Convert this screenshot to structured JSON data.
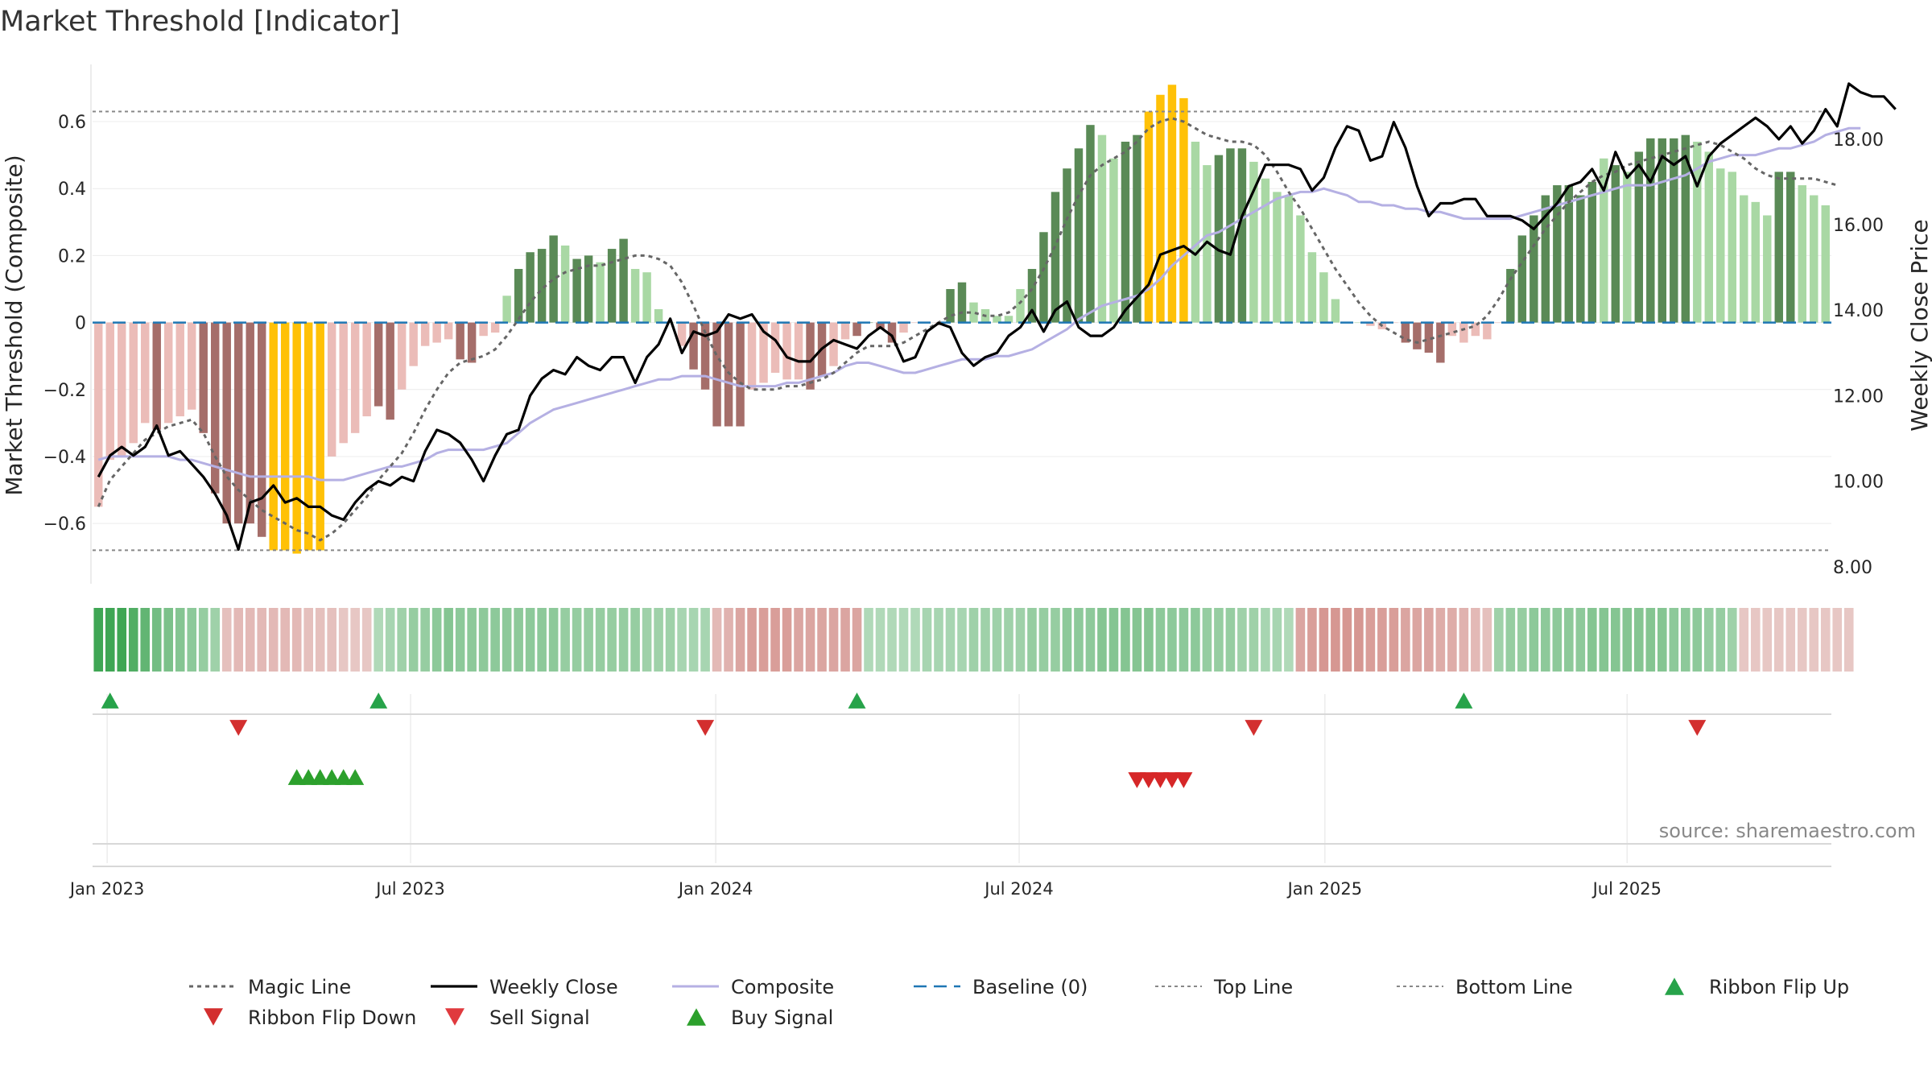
{
  "chart_data": {
    "type": "bar",
    "title": "Market Threshold [Indicator]",
    "ylabel": "Market Threshold (Composite)",
    "y2label": "Weekly Close Price",
    "source": "source: sharemaestro.com",
    "ylim": [
      -0.78,
      0.79
    ],
    "y2lim": [
      7.6,
      19.9
    ],
    "yticks": [
      "0.6",
      "0.4",
      "0.2",
      "0",
      "−0.2",
      "−0.4",
      "−0.6"
    ],
    "yticks_values": [
      0.6,
      0.4,
      0.2,
      0,
      -0.2,
      -0.4,
      -0.6
    ],
    "y2ticks": [
      "18.00",
      "16.00",
      "14.00",
      "12.00",
      "10.00",
      "8.00"
    ],
    "y2ticks_values": [
      18,
      16,
      14,
      12,
      10,
      8
    ],
    "xticks": [
      "Jan 2023",
      "Jul 2023",
      "Jan 2024",
      "Jul 2024",
      "Jan 2025",
      "Jul 2025"
    ],
    "xticks_week_index": [
      0.75,
      26.75,
      52.9,
      78.9,
      105.1,
      131
    ],
    "top_line": 0.63,
    "bottom_line": -0.68,
    "grid": true,
    "legend_position": "bottom",
    "colors": {
      "strong_pos": "#5a8a56",
      "weak_pos": "#a9d8a4",
      "strong_neg": "#a56e6a",
      "weak_neg": "#ebbcb8",
      "extreme": "#ffc107",
      "close": "#000000",
      "composite": "#b5b0e3",
      "magic": "#666666",
      "baseline": "#1f77b4",
      "buy": "#2ca02c",
      "sell": "#d62728",
      "flip_up": "#27a34a",
      "flip_down": "#d32f2f"
    },
    "bar_values": [
      -0.55,
      -0.41,
      -0.4,
      -0.36,
      -0.3,
      -0.32,
      -0.3,
      -0.28,
      -0.26,
      -0.33,
      -0.51,
      -0.6,
      -0.6,
      -0.6,
      -0.64,
      -0.68,
      -0.68,
      -0.69,
      -0.68,
      -0.68,
      -0.4,
      -0.36,
      -0.33,
      -0.28,
      -0.25,
      -0.29,
      -0.2,
      -0.13,
      -0.07,
      -0.06,
      -0.05,
      -0.11,
      -0.12,
      -0.04,
      -0.03,
      0.08,
      0.16,
      0.21,
      0.22,
      0.26,
      0.23,
      0.19,
      0.2,
      0.18,
      0.22,
      0.25,
      0.16,
      0.15,
      0.04,
      0.0,
      -0.07,
      -0.14,
      -0.2,
      -0.31,
      -0.31,
      -0.31,
      -0.2,
      -0.18,
      -0.15,
      -0.17,
      -0.17,
      -0.2,
      -0.16,
      -0.13,
      -0.05,
      -0.04,
      0.0,
      -0.02,
      -0.06,
      -0.03,
      0.0,
      0.0,
      0.0,
      0.1,
      0.12,
      0.06,
      0.04,
      0.02,
      0.02,
      0.1,
      0.16,
      0.27,
      0.39,
      0.46,
      0.52,
      0.59,
      0.56,
      0.49,
      0.54,
      0.56,
      0.63,
      0.68,
      0.71,
      0.67,
      0.54,
      0.47,
      0.5,
      0.52,
      0.52,
      0.48,
      0.43,
      0.39,
      0.38,
      0.32,
      0.21,
      0.15,
      0.07,
      0.0,
      0.0,
      -0.01,
      -0.02,
      0.0,
      -0.06,
      -0.08,
      -0.09,
      -0.12,
      -0.04,
      -0.06,
      -0.04,
      -0.05,
      0.0,
      0.16,
      0.26,
      0.32,
      0.38,
      0.41,
      0.41,
      0.38,
      0.42,
      0.49,
      0.47,
      0.45,
      0.51,
      0.55,
      0.55,
      0.55,
      0.56,
      0.54,
      0.51,
      0.46,
      0.45,
      0.38,
      0.36,
      0.32,
      0.45,
      0.45,
      0.41,
      0.38,
      0.35
    ],
    "bar_classes": [
      "wn",
      "wn",
      "wn",
      "wn",
      "wn",
      "sn",
      "wn",
      "wn",
      "wn",
      "sn",
      "sn",
      "sn",
      "sn",
      "sn",
      "sn",
      "ex",
      "ex",
      "ex",
      "ex",
      "ex",
      "wn",
      "wn",
      "wn",
      "wn",
      "sn",
      "sn",
      "wn",
      "wn",
      "wn",
      "wn",
      "wn",
      "sn",
      "sn",
      "wn",
      "wn",
      "wp",
      "sp",
      "sp",
      "sp",
      "sp",
      "wp",
      "sp",
      "sp",
      "wp",
      "sp",
      "sp",
      "wp",
      "wp",
      "wp",
      "wp",
      "wn",
      "sn",
      "sn",
      "sn",
      "sn",
      "sn",
      "wn",
      "wn",
      "wn",
      "wn",
      "wn",
      "sn",
      "sn",
      "wn",
      "wn",
      "sn",
      "sp",
      "sn",
      "sn",
      "wn",
      "wn",
      "wn",
      "wn",
      "sp",
      "sp",
      "wp",
      "wp",
      "wp",
      "wp",
      "wp",
      "sp",
      "sp",
      "sp",
      "sp",
      "sp",
      "sp",
      "wp",
      "wp",
      "sp",
      "sp",
      "ex",
      "ex",
      "ex",
      "ex",
      "wp",
      "wp",
      "sp",
      "sp",
      "sp",
      "wp",
      "wp",
      "wp",
      "wp",
      "wp",
      "wp",
      "wp",
      "wp",
      "wp",
      "wp",
      "wn",
      "wn",
      "wn",
      "sn",
      "sn",
      "sn",
      "sn",
      "wn",
      "wn",
      "wn",
      "wn",
      "wn",
      "sp",
      "sp",
      "sp",
      "sp",
      "sp",
      "sp",
      "sp",
      "sp",
      "wp",
      "sp",
      "wp",
      "sp",
      "sp",
      "sp",
      "sp",
      "sp",
      "wp",
      "wp",
      "wp",
      "wp",
      "wp",
      "wp",
      "wp",
      "sp",
      "sp",
      "wp",
      "wp",
      "wp"
    ],
    "close_values": [
      10.1,
      10.6,
      10.8,
      10.6,
      10.8,
      11.3,
      10.6,
      10.7,
      10.4,
      10.1,
      9.7,
      9.2,
      8.4,
      9.5,
      9.6,
      9.9,
      9.5,
      9.6,
      9.4,
      9.4,
      9.2,
      9.1,
      9.5,
      9.8,
      10.0,
      9.9,
      10.1,
      10.0,
      10.7,
      11.2,
      11.1,
      10.9,
      10.5,
      10.0,
      10.6,
      11.1,
      11.2,
      12.0,
      12.4,
      12.6,
      12.5,
      12.9,
      12.7,
      12.6,
      12.9,
      12.9,
      12.3,
      12.9,
      13.2,
      13.8,
      13.0,
      13.5,
      13.4,
      13.5,
      13.9,
      13.8,
      13.9,
      13.5,
      13.3,
      12.9,
      12.8,
      12.8,
      13.1,
      13.3,
      13.2,
      13.1,
      13.4,
      13.6,
      13.4,
      12.8,
      12.9,
      13.5,
      13.7,
      13.6,
      13.0,
      12.7,
      12.9,
      13.0,
      13.4,
      13.6,
      14.0,
      13.5,
      14.0,
      14.2,
      13.6,
      13.4,
      13.4,
      13.6,
      14.0,
      14.3,
      14.6,
      15.3,
      15.4,
      15.5,
      15.3,
      15.6,
      15.4,
      15.3,
      16.2,
      16.8,
      17.4,
      17.4,
      17.4,
      17.3,
      16.8,
      17.1,
      17.8,
      18.3,
      18.2,
      17.5,
      17.6,
      18.4,
      17.8,
      16.9,
      16.2,
      16.5,
      16.5,
      16.6,
      16.6,
      16.2,
      16.2,
      16.2,
      16.1,
      15.9,
      16.2,
      16.5,
      16.9,
      17.0,
      17.3,
      16.8,
      17.7,
      17.1,
      17.4,
      17.0,
      17.6,
      17.4,
      17.6,
      16.9,
      17.6,
      17.9,
      18.1,
      18.3,
      18.5,
      18.3,
      18.0,
      18.3,
      17.9,
      18.2,
      18.7,
      18.3,
      19.3,
      19.1,
      19.0,
      19.0,
      18.7
    ],
    "composite_values": [
      -0.41,
      -0.4,
      -0.4,
      -0.4,
      -0.4,
      -0.4,
      -0.4,
      -0.41,
      -0.41,
      -0.42,
      -0.43,
      -0.44,
      -0.45,
      -0.46,
      -0.46,
      -0.46,
      -0.46,
      -0.46,
      -0.46,
      -0.47,
      -0.47,
      -0.47,
      -0.46,
      -0.45,
      -0.44,
      -0.43,
      -0.43,
      -0.42,
      -0.41,
      -0.39,
      -0.38,
      -0.38,
      -0.38,
      -0.38,
      -0.37,
      -0.36,
      -0.33,
      -0.3,
      -0.28,
      -0.26,
      -0.25,
      -0.24,
      -0.23,
      -0.22,
      -0.21,
      -0.2,
      -0.19,
      -0.18,
      -0.17,
      -0.17,
      -0.16,
      -0.16,
      -0.16,
      -0.17,
      -0.18,
      -0.19,
      -0.19,
      -0.19,
      -0.19,
      -0.18,
      -0.18,
      -0.17,
      -0.16,
      -0.15,
      -0.13,
      -0.12,
      -0.12,
      -0.13,
      -0.14,
      -0.15,
      -0.15,
      -0.14,
      -0.13,
      -0.12,
      -0.11,
      -0.11,
      -0.11,
      -0.1,
      -0.1,
      -0.09,
      -0.08,
      -0.06,
      -0.04,
      -0.02,
      0.01,
      0.03,
      0.05,
      0.06,
      0.07,
      0.08,
      0.1,
      0.13,
      0.17,
      0.2,
      0.23,
      0.26,
      0.27,
      0.29,
      0.31,
      0.33,
      0.35,
      0.37,
      0.38,
      0.39,
      0.39,
      0.4,
      0.39,
      0.38,
      0.36,
      0.36,
      0.35,
      0.35,
      0.34,
      0.34,
      0.33,
      0.33,
      0.32,
      0.31,
      0.31,
      0.31,
      0.31,
      0.31,
      0.32,
      0.33,
      0.34,
      0.35,
      0.36,
      0.37,
      0.38,
      0.39,
      0.4,
      0.41,
      0.41,
      0.41,
      0.42,
      0.43,
      0.44,
      0.46,
      0.48,
      0.49,
      0.5,
      0.5,
      0.5,
      0.51,
      0.52,
      0.52,
      0.53,
      0.54,
      0.56,
      0.57,
      0.58,
      0.58
    ],
    "magic_values": [
      -0.55,
      -0.47,
      -0.43,
      -0.39,
      -0.35,
      -0.33,
      -0.31,
      -0.3,
      -0.29,
      -0.33,
      -0.4,
      -0.46,
      -0.5,
      -0.53,
      -0.56,
      -0.58,
      -0.6,
      -0.62,
      -0.63,
      -0.65,
      -0.63,
      -0.6,
      -0.56,
      -0.52,
      -0.47,
      -0.43,
      -0.39,
      -0.33,
      -0.26,
      -0.2,
      -0.15,
      -0.12,
      -0.11,
      -0.1,
      -0.08,
      -0.04,
      0.01,
      0.06,
      0.1,
      0.13,
      0.15,
      0.16,
      0.17,
      0.17,
      0.18,
      0.19,
      0.2,
      0.2,
      0.19,
      0.17,
      0.12,
      0.05,
      -0.03,
      -0.1,
      -0.15,
      -0.18,
      -0.2,
      -0.2,
      -0.2,
      -0.19,
      -0.19,
      -0.18,
      -0.17,
      -0.15,
      -0.12,
      -0.09,
      -0.07,
      -0.07,
      -0.07,
      -0.06,
      -0.04,
      -0.02,
      0.0,
      0.02,
      0.03,
      0.03,
      0.02,
      0.02,
      0.03,
      0.06,
      0.1,
      0.16,
      0.23,
      0.31,
      0.38,
      0.44,
      0.47,
      0.49,
      0.51,
      0.54,
      0.58,
      0.6,
      0.61,
      0.6,
      0.58,
      0.56,
      0.55,
      0.54,
      0.54,
      0.53,
      0.5,
      0.45,
      0.39,
      0.34,
      0.28,
      0.22,
      0.16,
      0.11,
      0.06,
      0.02,
      -0.01,
      -0.03,
      -0.05,
      -0.06,
      -0.05,
      -0.04,
      -0.03,
      -0.02,
      -0.01,
      0.02,
      0.07,
      0.13,
      0.18,
      0.23,
      0.28,
      0.32,
      0.36,
      0.39,
      0.42,
      0.44,
      0.45,
      0.47,
      0.48,
      0.49,
      0.5,
      0.51,
      0.52,
      0.53,
      0.54,
      0.53,
      0.51,
      0.49,
      0.46,
      0.44,
      0.43,
      0.43,
      0.43,
      0.43,
      0.42,
      0.41
    ],
    "ribbon_values": [
      0.9,
      0.9,
      0.9,
      0.8,
      0.7,
      0.6,
      0.55,
      0.5,
      0.45,
      0.4,
      0.35,
      -0.25,
      -0.3,
      -0.3,
      -0.3,
      -0.3,
      -0.3,
      -0.3,
      -0.25,
      -0.25,
      -0.25,
      -0.2,
      -0.2,
      -0.2,
      0.25,
      0.3,
      0.35,
      0.4,
      0.4,
      0.45,
      0.5,
      0.45,
      0.45,
      0.45,
      0.45,
      0.45,
      0.45,
      0.45,
      0.45,
      0.45,
      0.4,
      0.4,
      0.4,
      0.4,
      0.4,
      0.4,
      0.4,
      0.35,
      0.35,
      0.35,
      0.3,
      0.3,
      0.3,
      -0.3,
      -0.35,
      -0.45,
      -0.5,
      -0.5,
      -0.5,
      -0.5,
      -0.45,
      -0.45,
      -0.45,
      -0.45,
      -0.45,
      -0.45,
      0.25,
      0.25,
      0.25,
      0.25,
      0.25,
      0.3,
      0.3,
      0.3,
      0.3,
      0.35,
      0.35,
      0.35,
      0.35,
      0.35,
      0.4,
      0.4,
      0.4,
      0.45,
      0.45,
      0.45,
      0.5,
      0.5,
      0.5,
      0.5,
      0.5,
      0.45,
      0.45,
      0.45,
      0.45,
      0.4,
      0.4,
      0.4,
      0.35,
      0.35,
      0.3,
      0.3,
      0.25,
      -0.45,
      -0.5,
      -0.55,
      -0.55,
      -0.55,
      -0.55,
      -0.5,
      -0.5,
      -0.5,
      -0.45,
      -0.45,
      -0.45,
      -0.4,
      -0.4,
      -0.35,
      -0.3,
      -0.25,
      0.35,
      0.4,
      0.4,
      0.45,
      0.45,
      0.45,
      0.45,
      0.45,
      0.5,
      0.5,
      0.5,
      0.5,
      0.5,
      0.5,
      0.5,
      0.45,
      0.45,
      0.45,
      0.4,
      0.4,
      0.35,
      -0.2,
      -0.2,
      -0.2,
      -0.2,
      -0.2,
      -0.2,
      -0.2,
      -0.2,
      -0.2,
      -0.2
    ],
    "ribbon_flip_up_week": [
      1,
      24,
      65,
      117
    ],
    "ribbon_flip_down_week": [
      12,
      52,
      99,
      137
    ],
    "buy_signal_week": [
      17,
      18,
      19,
      20,
      21,
      22
    ],
    "sell_signal_week": [
      89,
      90,
      91,
      92,
      93
    ]
  },
  "legend": [
    {
      "label": "Magic Line",
      "icon": "dotted-line"
    },
    {
      "label": "Weekly Close",
      "icon": "solid-line"
    },
    {
      "label": "Composite",
      "icon": "solid-line"
    },
    {
      "label": "Baseline (0)",
      "icon": "dashed-line"
    },
    {
      "label": "Top Line",
      "icon": "dotted-line"
    },
    {
      "label": "Bottom Line",
      "icon": "dotted-line"
    },
    {
      "label": "Ribbon Flip Up",
      "icon": "triangle-up"
    },
    {
      "label": "Ribbon Flip Down",
      "icon": "triangle-down"
    },
    {
      "label": "Sell Signal",
      "icon": "triangle-down"
    },
    {
      "label": "Buy Signal",
      "icon": "triangle-up"
    }
  ]
}
